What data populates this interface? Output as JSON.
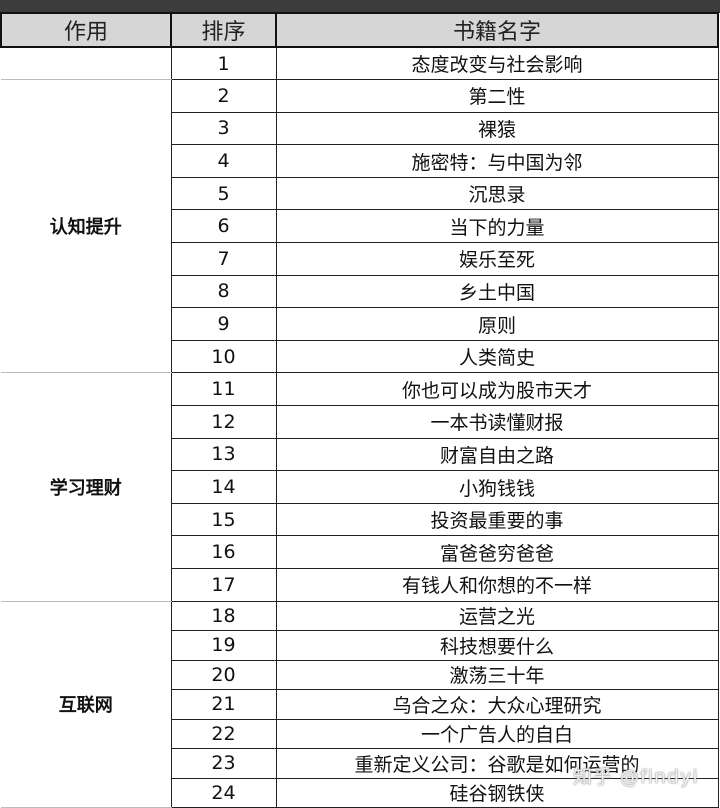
{
  "headers": [
    "作用",
    "排序",
    "书籍名字"
  ],
  "groups": [
    {
      "label": "",
      "rows": [
        {
          "n": "1",
          "title": "态度改变与社会影响"
        }
      ]
    },
    {
      "label": "认知提升",
      "rows": [
        {
          "n": "2",
          "title": "第二性"
        },
        {
          "n": "3",
          "title": "裸猿"
        },
        {
          "n": "4",
          "title": "施密特：与中国为邻"
        },
        {
          "n": "5",
          "title": "沉思录"
        },
        {
          "n": "6",
          "title": "当下的力量"
        },
        {
          "n": "7",
          "title": "娱乐至死"
        },
        {
          "n": "8",
          "title": "乡土中国"
        },
        {
          "n": "9",
          "title": "原则"
        },
        {
          "n": "10",
          "title": "人类简史"
        }
      ]
    },
    {
      "label": "学习理财",
      "rows": [
        {
          "n": "11",
          "title": "你也可以成为股市天才"
        },
        {
          "n": "12",
          "title": "一本书读懂财报"
        },
        {
          "n": "13",
          "title": "财富自由之路"
        },
        {
          "n": "14",
          "title": "小狗钱钱"
        },
        {
          "n": "15",
          "title": "投资最重要的事"
        },
        {
          "n": "16",
          "title": "富爸爸穷爸爸"
        },
        {
          "n": "17",
          "title": "有钱人和你想的不一样"
        }
      ]
    },
    {
      "label": "互联网",
      "rows": [
        {
          "n": "18",
          "title": "运营之光"
        },
        {
          "n": "19",
          "title": "科技想要什么"
        },
        {
          "n": "20",
          "title": "激荡三十年"
        },
        {
          "n": "21",
          "title": "乌合之众：大众心理研究"
        },
        {
          "n": "22",
          "title": "一个广告人的自白"
        },
        {
          "n": "23",
          "title": "重新定义公司：谷歌是如何运营的"
        },
        {
          "n": "24",
          "title": "硅谷钢铁侠"
        }
      ]
    }
  ],
  "watermark": "知乎 @findyi"
}
